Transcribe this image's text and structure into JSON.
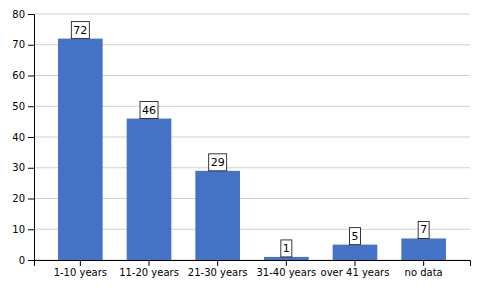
{
  "chart_data": {
    "type": "bar",
    "categories": [
      "1-10 years",
      "11-20 years",
      "21-30 years",
      "31-40 years",
      "over 41 years",
      "no data"
    ],
    "values": [
      72,
      46,
      29,
      1,
      5,
      7
    ],
    "color": "#4472C4",
    "ylim": [
      0,
      80
    ],
    "yticks": [
      0,
      10,
      20,
      30,
      40,
      50,
      60,
      70,
      80
    ],
    "grid": true,
    "data_labels": true
  }
}
